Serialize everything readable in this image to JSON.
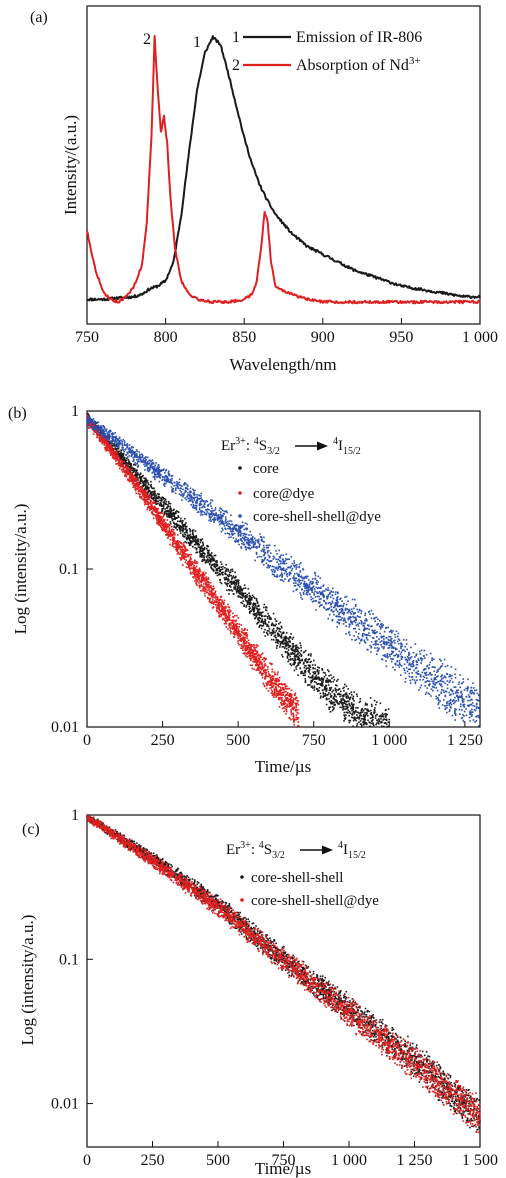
{
  "panels": [
    {
      "id": "a",
      "panel_label": "(a)",
      "xlabel": "Wavelength/nm",
      "ylabel": "Intensity/(a.u.)",
      "xticks": [
        "750",
        "800",
        "850",
        "900",
        "950",
        "1 000"
      ],
      "legend": [
        {
          "num": "1",
          "text": "Emission of IR-806",
          "color": "#1a1a1a"
        },
        {
          "num": "2",
          "text": "Absorption of Nd",
          "sup": "3+",
          "color": "#e02020"
        }
      ],
      "peak_labels": [
        "2",
        "1"
      ]
    },
    {
      "id": "b",
      "panel_label": "(b)",
      "xlabel": "Time/µs",
      "ylabel": "Log (intensity/a.u.)",
      "xticks": [
        "0",
        "250",
        "500",
        "750",
        "1 000",
        "1 250"
      ],
      "yticks": [
        "0.01",
        "0.1",
        "1"
      ],
      "transition": {
        "ion": "Er",
        "ion_sup": "3+",
        "sep": ": ",
        "from_pre": "4",
        "from": "S",
        "from_sub": "3/2",
        "to_pre": "4",
        "to": "I",
        "to_sub": "15/2"
      },
      "legend": [
        {
          "text": "core",
          "color": "#1a1a1a"
        },
        {
          "text": "core@dye",
          "color": "#e02020"
        },
        {
          "text": "core-shell-shell@dye",
          "color": "#2a4fb0"
        }
      ]
    },
    {
      "id": "c",
      "panel_label": "(c)",
      "xlabel": "Time/µs",
      "ylabel": "Log (intensity/a.u.)",
      "xticks": [
        "0",
        "250",
        "500",
        "750",
        "1 000",
        "1 250",
        "1 500"
      ],
      "yticks": [
        "0.01",
        "0.1",
        "1"
      ],
      "transition": {
        "ion": "Er",
        "ion_sup": "3+",
        "sep": ": ",
        "from_pre": "4",
        "from": "S",
        "from_sub": "3/2",
        "to_pre": "4",
        "to": "I",
        "to_sub": "15/2"
      },
      "legend": [
        {
          "text": "core-shell-shell",
          "color": "#1a1a1a"
        },
        {
          "text": "core-shell-shell@dye",
          "color": "#e02020"
        }
      ]
    }
  ],
  "chart_data": [
    {
      "type": "line",
      "xlim": [
        750,
        1000
      ],
      "ylim": [
        0,
        1
      ],
      "series": [
        {
          "name": "Emission of IR-806",
          "color": "#1a1a1a",
          "x": [
            750,
            760,
            770,
            780,
            785,
            790,
            795,
            800,
            805,
            810,
            815,
            820,
            825,
            830,
            835,
            840,
            845,
            850,
            855,
            860,
            865,
            870,
            880,
            890,
            900,
            910,
            920,
            930,
            940,
            950,
            960,
            970,
            980,
            990,
            1000
          ],
          "y": [
            0.01,
            0.01,
            0.015,
            0.02,
            0.03,
            0.05,
            0.06,
            0.08,
            0.15,
            0.33,
            0.57,
            0.8,
            0.94,
            1.0,
            0.97,
            0.86,
            0.74,
            0.62,
            0.52,
            0.44,
            0.38,
            0.33,
            0.26,
            0.21,
            0.18,
            0.15,
            0.12,
            0.1,
            0.08,
            0.06,
            0.05,
            0.04,
            0.03,
            0.02,
            0.02
          ]
        },
        {
          "name": "Absorption of Nd3+",
          "color": "#e02020",
          "x": [
            750,
            755,
            760,
            765,
            770,
            775,
            780,
            785,
            788,
            791,
            793,
            795,
            797,
            799,
            801,
            803,
            806,
            810,
            815,
            820,
            830,
            840,
            850,
            855,
            858,
            861,
            863,
            865,
            867,
            870,
            875,
            880,
            890,
            900,
            950,
            1000
          ],
          "y": [
            0.27,
            0.13,
            0.04,
            0.01,
            0.0,
            0.02,
            0.06,
            0.14,
            0.3,
            0.62,
            1.0,
            0.8,
            0.64,
            0.7,
            0.6,
            0.4,
            0.2,
            0.08,
            0.03,
            0.01,
            0.0,
            0.0,
            0.01,
            0.03,
            0.08,
            0.22,
            0.34,
            0.3,
            0.15,
            0.06,
            0.04,
            0.03,
            0.01,
            0.0,
            0.0,
            0.0
          ]
        }
      ]
    },
    {
      "type": "scatter",
      "xlim": [
        0,
        1300
      ],
      "ylim": [
        0.01,
        1
      ],
      "yscale": "log",
      "series": [
        {
          "name": "core",
          "color": "#1a1a1a",
          "x": [
            0,
            100,
            200,
            300,
            400,
            500,
            600,
            700,
            800,
            900,
            1000
          ],
          "y": [
            0.9,
            0.55,
            0.33,
            0.2,
            0.12,
            0.074,
            0.045,
            0.027,
            0.017,
            0.012,
            0.01
          ]
        },
        {
          "name": "core@dye",
          "color": "#e02020",
          "x": [
            0,
            100,
            200,
            300,
            400,
            500,
            600,
            700
          ],
          "y": [
            0.88,
            0.5,
            0.27,
            0.14,
            0.075,
            0.04,
            0.021,
            0.012
          ]
        },
        {
          "name": "core-shell-shell@dye",
          "color": "#2a4fb0",
          "x": [
            0,
            100,
            200,
            300,
            400,
            500,
            600,
            700,
            800,
            900,
            1000,
            1100,
            1200,
            1300
          ],
          "y": [
            0.88,
            0.64,
            0.46,
            0.33,
            0.24,
            0.17,
            0.12,
            0.086,
            0.062,
            0.045,
            0.032,
            0.023,
            0.017,
            0.013
          ]
        }
      ]
    },
    {
      "type": "scatter",
      "xlim": [
        0,
        1500
      ],
      "ylim": [
        0.005,
        1
      ],
      "yscale": "log",
      "series": [
        {
          "name": "core-shell-shell",
          "color": "#1a1a1a",
          "x": [
            0,
            250,
            500,
            750,
            1000,
            1250,
            1500
          ],
          "y": [
            0.97,
            0.5,
            0.24,
            0.1,
            0.045,
            0.02,
            0.008
          ]
        },
        {
          "name": "core-shell-shell@dye",
          "color": "#e02020",
          "x": [
            0,
            250,
            500,
            750,
            1000,
            1250,
            1500
          ],
          "y": [
            0.97,
            0.48,
            0.23,
            0.098,
            0.043,
            0.019,
            0.008
          ]
        }
      ]
    }
  ]
}
